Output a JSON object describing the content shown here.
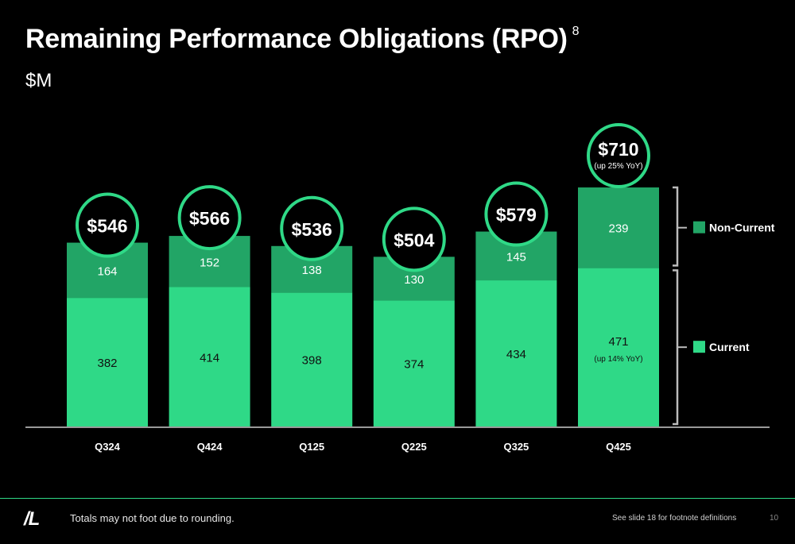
{
  "slide": {
    "title": "Remaining Performance Obligations (RPO)",
    "title_footnote": "8",
    "subtitle": "$M",
    "logo": "/L",
    "footnote": "Totals may not foot due to rounding.",
    "footnote_ref": "See slide 18 for footnote definitions",
    "page_number": "10"
  },
  "colors": {
    "background": "#000000",
    "current": "#2fd987",
    "non_current": "#22a566",
    "circle_stroke": "#2fd987",
    "axis": "#cccccc",
    "bracket": "#bbbbbb"
  },
  "chart_data": {
    "type": "bar",
    "stacked": true,
    "categories": [
      "Q324",
      "Q424",
      "Q125",
      "Q225",
      "Q325",
      "Q425"
    ],
    "series": [
      {
        "name": "Current",
        "values": [
          382,
          414,
          398,
          374,
          434,
          471
        ]
      },
      {
        "name": "Non-Current",
        "values": [
          164,
          152,
          138,
          130,
          145,
          239
        ]
      }
    ],
    "totals": [
      "$546",
      "$566",
      "$536",
      "$504",
      "$579",
      "$710"
    ],
    "annotations": {
      "total_last": "(up 25% YoY)",
      "current_last": "(up 14% YoY)"
    },
    "legend": [
      "Non-Current",
      "Current"
    ],
    "legend_position": "right",
    "ylim": [
      0,
      710
    ],
    "grid": false
  }
}
